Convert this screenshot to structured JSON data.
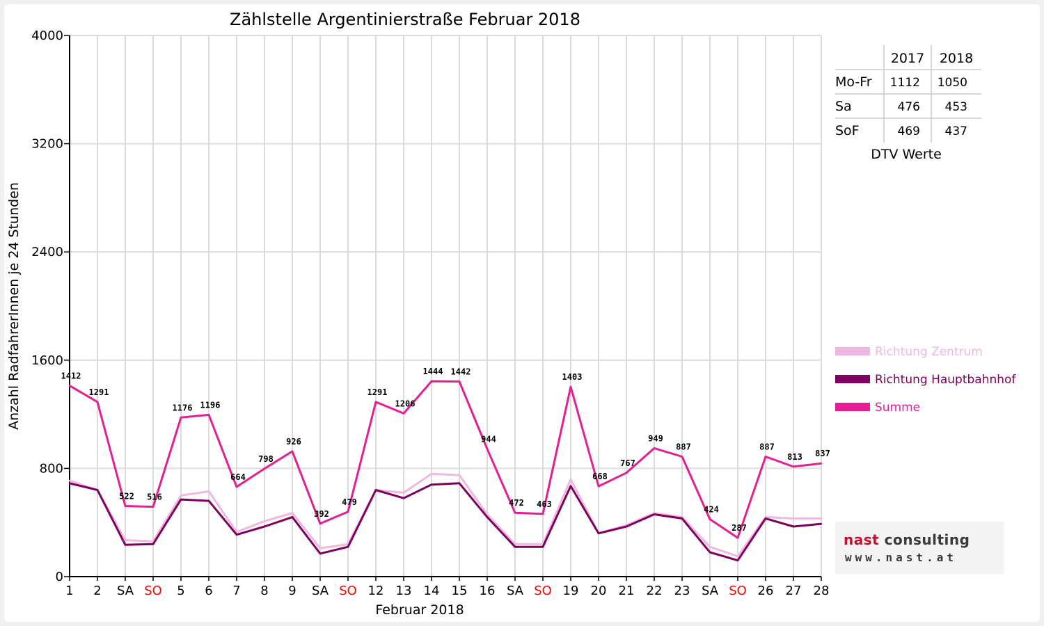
{
  "chart_data": {
    "type": "line",
    "title": "Zählstelle Argentinierstraße Februar 2018",
    "xlabel": "Februar 2018",
    "ylabel": "Anzahl RadfahrerInnen je 24 Stunden",
    "ylim": [
      0,
      4000
    ],
    "yticks": [
      "0",
      "800",
      "1600",
      "2400",
      "3200",
      "4000"
    ],
    "grid": true,
    "legend_position": "right",
    "categories": [
      "1",
      "2",
      "SA",
      "SO",
      "5",
      "6",
      "7",
      "8",
      "9",
      "SA",
      "SO",
      "12",
      "13",
      "14",
      "15",
      "16",
      "SA",
      "SO",
      "19",
      "20",
      "21",
      "22",
      "23",
      "SA",
      "SO",
      "26",
      "27",
      "28"
    ],
    "weekend_label_color": {
      "SO": "#ff0000"
    },
    "series": [
      {
        "name": "Richtung Zentrum",
        "color": "#f0b8e0",
        "values": [
          710,
          640,
          270,
          260,
          600,
          630,
          330,
          410,
          470,
          210,
          240,
          640,
          620,
          760,
          750,
          460,
          240,
          240,
          720,
          320,
          380,
          470,
          440,
          220,
          150,
          440,
          430,
          430
        ]
      },
      {
        "name": "Richtung Hauptbahnhof",
        "color": "#800060",
        "values": [
          690,
          640,
          235,
          240,
          570,
          560,
          310,
          370,
          440,
          170,
          220,
          640,
          580,
          680,
          690,
          440,
          220,
          220,
          670,
          320,
          370,
          460,
          430,
          180,
          120,
          430,
          370,
          390
        ]
      },
      {
        "name": "Summe",
        "color": "#e61e96",
        "values": [
          1412,
          1291,
          522,
          516,
          1176,
          1196,
          664,
          798,
          926,
          392,
          479,
          1291,
          1206,
          1444,
          1442,
          944,
          472,
          463,
          1403,
          668,
          767,
          949,
          887,
          424,
          287,
          887,
          813,
          837
        ]
      }
    ],
    "data_labels": [
      "1412",
      "1291",
      "522",
      "516",
      "1176",
      "1196",
      "664",
      "798",
      "926",
      "392",
      "479",
      "1291",
      "1206",
      "1444",
      "1442",
      "944",
      "472",
      "463",
      "1403",
      "668",
      "767",
      "949",
      "887",
      "424",
      "287",
      "887",
      "813",
      "837"
    ]
  },
  "dtv_table": {
    "headers": [
      "",
      "2017",
      "2018"
    ],
    "rows": [
      {
        "label": "Mo-Fr",
        "v2017": "1112",
        "v2018": "1050"
      },
      {
        "label": "Sa",
        "v2017": "476",
        "v2018": "453"
      },
      {
        "label": "SoF",
        "v2017": "469",
        "v2018": "437"
      }
    ],
    "caption": "DTV Werte"
  },
  "logo": {
    "brand_a": "nast",
    "brand_b": " consulting",
    "url": "www.nast.at"
  },
  "colors": {
    "axis": "#000000",
    "grid": "#dcdcdc",
    "background": "#ffffff",
    "frame": "#f0f0f0"
  }
}
